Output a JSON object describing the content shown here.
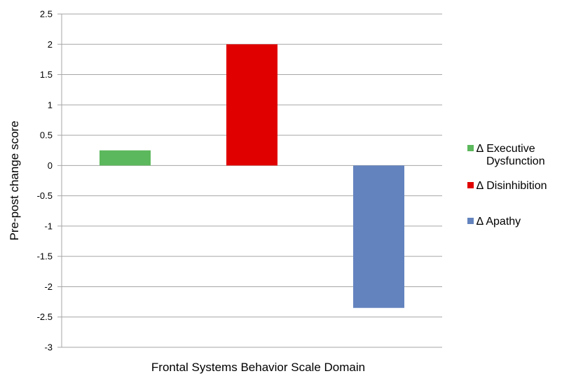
{
  "chart_data": {
    "type": "bar",
    "title": "",
    "xlabel": "Frontal Systems Behavior Scale Domain",
    "ylabel": "Pre-post change score",
    "ylim": [
      -3,
      2.5
    ],
    "ytick_step": 0.5,
    "ytick_labels": [
      "2.5",
      "2",
      "1.5",
      "1",
      "0.5",
      "0",
      "-0.5",
      "-1",
      "-1.5",
      "-2",
      "-2.5",
      "-3"
    ],
    "grid": true,
    "legend_position": "right",
    "series": [
      {
        "name": "∆ Executive Dysfunction",
        "name_lines": [
          "∆ Executive",
          "Dysfunction"
        ],
        "value": 0.25,
        "color": "#5cb85c"
      },
      {
        "name": "∆ Disinhibition",
        "name_lines": [
          "∆ Disinhibition"
        ],
        "value": 2.0,
        "color": "#e00000"
      },
      {
        "name": "∆ Apathy",
        "name_lines": [
          "∆ Apathy"
        ],
        "value": -2.35,
        "color": "#6383be"
      }
    ]
  }
}
